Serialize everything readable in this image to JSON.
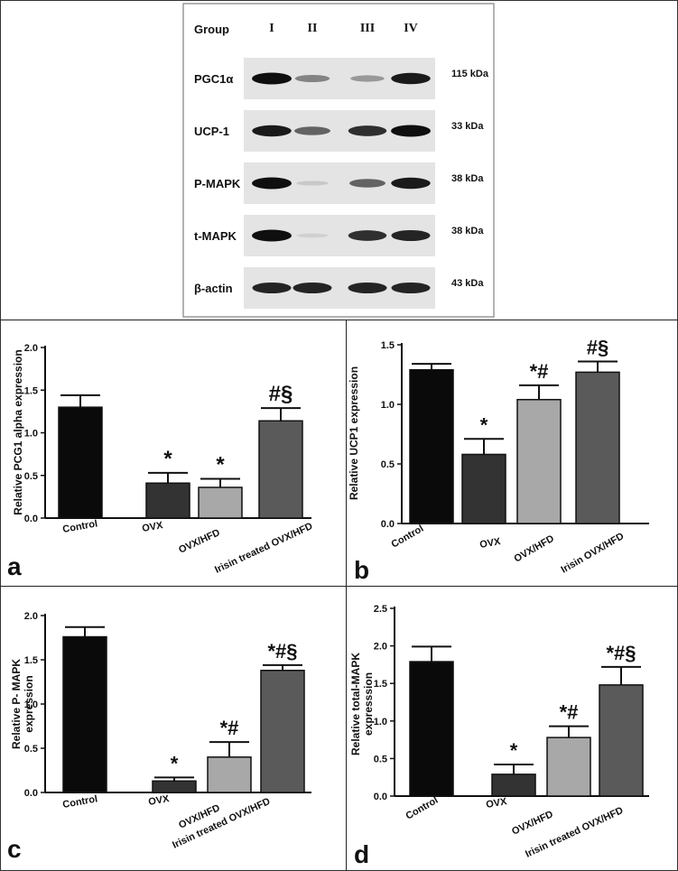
{
  "western_blot": {
    "group_label": "Group",
    "lanes": [
      "I",
      "II",
      "III",
      "IV"
    ],
    "rows": [
      {
        "protein": "PGC1α",
        "size": "115 kDa",
        "intensity": [
          1.0,
          0.45,
          0.35,
          0.95
        ]
      },
      {
        "protein": "UCP-1",
        "size": "33 kDa",
        "intensity": [
          0.95,
          0.6,
          0.85,
          1.0
        ]
      },
      {
        "protein": "P-MAPK",
        "size": "38 kDa",
        "intensity": [
          1.0,
          0.12,
          0.6,
          0.95
        ]
      },
      {
        "protein": "t-MAPK",
        "size": "38 kDa",
        "intensity": [
          1.0,
          0.08,
          0.85,
          0.9
        ]
      },
      {
        "protein": "β-actin",
        "size": "43 kDa",
        "intensity": [
          0.9,
          0.9,
          0.9,
          0.9
        ]
      }
    ]
  },
  "colors": {
    "control": "#0a0a0a",
    "ovx": "#333333",
    "ovx_hfd": "#a8a8a8",
    "irisin": "#5a5a5a"
  },
  "chart_data": [
    {
      "panel_letter": "a",
      "type": "bar",
      "categories": [
        "Control",
        "OVX",
        "OVX/HFD",
        "Irisin treated OVX/HFD"
      ],
      "values": [
        1.3,
        0.41,
        0.36,
        1.14
      ],
      "errors": [
        0.14,
        0.12,
        0.1,
        0.15
      ],
      "annotations": [
        "",
        "*",
        "*",
        "#§"
      ],
      "ylabel": "Relative PCG1 alpha expression",
      "ylim": [
        0,
        2.0
      ],
      "yticks": [
        "0.0",
        "0.5",
        "1.0",
        "1.5",
        "2.0"
      ]
    },
    {
      "panel_letter": "b",
      "type": "bar",
      "categories": [
        "Control",
        "OVX",
        "OVX/HFD",
        "Irisin OVX/HFD"
      ],
      "values": [
        1.29,
        0.58,
        1.04,
        1.27
      ],
      "errors": [
        0.05,
        0.13,
        0.12,
        0.09
      ],
      "annotations": [
        "",
        "*",
        "*#",
        "#§"
      ],
      "ylabel": "Relative UCP1 expression",
      "ylim": [
        0,
        1.5
      ],
      "yticks": [
        "0.0",
        "0.5",
        "1.0",
        "1.5"
      ]
    },
    {
      "panel_letter": "c",
      "type": "bar",
      "categories": [
        "Control",
        "OVX",
        "OVX/HFD",
        "Irisin treated OVX/HFD"
      ],
      "values": [
        1.76,
        0.13,
        0.4,
        1.38
      ],
      "errors": [
        0.11,
        0.04,
        0.17,
        0.06
      ],
      "annotations": [
        "",
        "*",
        "*#",
        "*#§"
      ],
      "ylabel": "Relative P- MAPK expression",
      "ylim": [
        0,
        2.0
      ],
      "yticks": [
        "0.0",
        "0.5",
        "1.0",
        "1.5",
        "2.0"
      ]
    },
    {
      "panel_letter": "d",
      "type": "bar",
      "categories": [
        "Control",
        "OVX",
        "OVX/HFD",
        "Irisin treated OVX/HFD"
      ],
      "values": [
        1.79,
        0.29,
        0.78,
        1.48
      ],
      "errors": [
        0.2,
        0.13,
        0.15,
        0.24
      ],
      "annotations": [
        "",
        "*",
        "*#",
        "*#§"
      ],
      "ylabel": "Relative total-MAPK expresssion",
      "ylim": [
        0,
        2.5
      ],
      "yticks": [
        "0.0",
        "0.5",
        "1.0",
        "1.5",
        "2.0",
        "2.5"
      ]
    }
  ]
}
